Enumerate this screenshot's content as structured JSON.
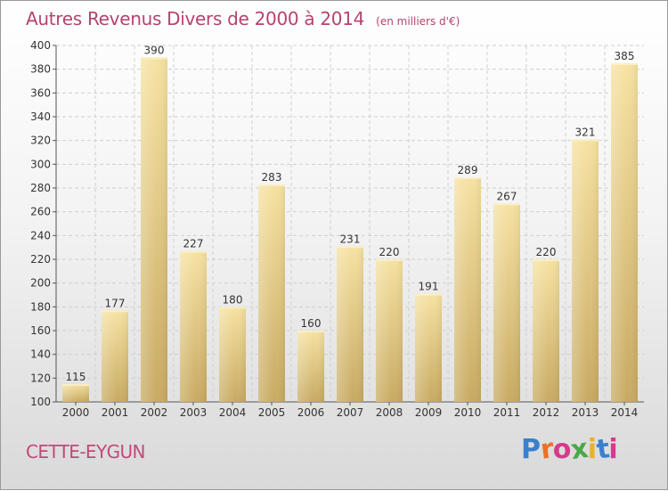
{
  "chart_data": {
    "type": "bar",
    "title": "Autres Revenus Divers de 2000 à 2014",
    "subtitle": "(en milliers d'€)",
    "xlabel": "",
    "ylabel": "",
    "categories": [
      "2000",
      "2001",
      "2002",
      "2003",
      "2004",
      "2005",
      "2006",
      "2007",
      "2008",
      "2009",
      "2010",
      "2011",
      "2012",
      "2013",
      "2014"
    ],
    "values": [
      115,
      177,
      390,
      227,
      180,
      283,
      160,
      231,
      220,
      191,
      289,
      267,
      220,
      321,
      385
    ],
    "ylim": [
      100,
      400
    ],
    "yticks": [
      100,
      120,
      140,
      160,
      180,
      200,
      220,
      240,
      260,
      280,
      300,
      320,
      340,
      360,
      380,
      400
    ],
    "grid": true,
    "legend": "none",
    "bar_color": "#e6c97f"
  },
  "location": "CETTE-EYGUN",
  "brand": {
    "name": "Proxiti",
    "colors": [
      "#3a7fd0",
      "#e8722a",
      "#d63a8c",
      "#4aa84a",
      "#e8b22a",
      "#3a7fd0",
      "#d63a8c"
    ]
  },
  "colors": {
    "title": "#b5436e",
    "axis": "#555555",
    "grid": "#d0d0d0"
  }
}
